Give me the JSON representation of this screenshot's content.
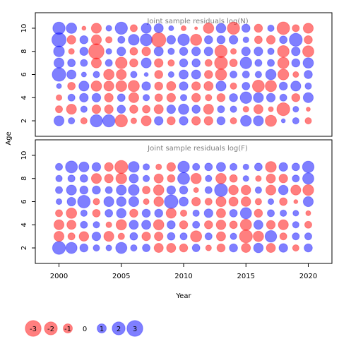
{
  "chart_data": [
    {
      "type": "bubble",
      "title": "Joint sample residuals log(N)",
      "x": [
        2000,
        2001,
        2002,
        2003,
        2004,
        2005,
        2006,
        2007,
        2008,
        2009,
        2010,
        2011,
        2012,
        2013,
        2014,
        2015,
        2016,
        2017,
        2018,
        2019,
        2020
      ],
      "y": [
        2,
        3,
        4,
        5,
        6,
        7,
        8,
        9,
        10
      ],
      "values": [
        [
          1.2,
          0.5,
          -0.5,
          1.8,
          1.8,
          -1.8,
          -0.4,
          -1.2,
          0.9,
          -0.8,
          0.9,
          -0.9,
          -0.9,
          0.8,
          -0.5,
          1.4,
          1.2,
          -1.5,
          0.2,
          0.5,
          -0.5
        ],
        [
          -0.6,
          -1.2,
          0.5,
          -0.9,
          -0.9,
          0.8,
          -0.8,
          -0.7,
          -1.0,
          0.9,
          1.3,
          0.8,
          -1.2,
          0.6,
          0.5,
          -0.4,
          -1.0,
          -0.3,
          -2.0,
          0.4,
          -0.2
        ],
        [
          -0.4,
          0.6,
          0.9,
          0.9,
          -0.9,
          0.7,
          -1.2,
          0.5,
          -0.7,
          -0.9,
          0.5,
          -0.9,
          -0.5,
          -0.8,
          0.8,
          1.6,
          1.2,
          0.9,
          0.6,
          -0.8,
          1.2
        ],
        [
          0.3,
          -0.7,
          1.2,
          -1.3,
          -1.2,
          -1.4,
          -1.5,
          0.9,
          -0.8,
          -1.0,
          0.9,
          -0.9,
          -1.0,
          1.2,
          -0.5,
          0.7,
          -1.7,
          -1.5,
          0.8,
          1.2,
          0.5
        ],
        [
          2.2,
          1.0,
          0.3,
          0.5,
          -1.3,
          -1.2,
          0.5,
          0.2,
          -0.8,
          0.4,
          1.0,
          1.0,
          -0.8,
          -1.5,
          0.6,
          0.6,
          0.5,
          1.3,
          -1.4,
          -0.4,
          0.8
        ],
        [
          1.2,
          0.7,
          0.6,
          -1.2,
          0.6,
          -1.6,
          -0.8,
          1.2,
          -0.9,
          -0.5,
          0.8,
          0.8,
          -0.6,
          -2.0,
          -0.7,
          1.6,
          0.6,
          0.6,
          -1.5,
          0.8,
          1.3
        ],
        [
          1.4,
          -0.4,
          0.8,
          -2.8,
          0.4,
          0.9,
          -0.7,
          -0.9,
          1.0,
          0.5,
          0.8,
          0.9,
          0.9,
          -1.8,
          -0.4,
          0.9,
          0.9,
          0.5,
          -1.6,
          0.9,
          -1.5
        ],
        [
          2.4,
          -0.9,
          0.8,
          -1.2,
          -0.5,
          0.6,
          1.4,
          1.7,
          -2.4,
          0.9,
          1.6,
          -1.5,
          0.8,
          0.8,
          0.9,
          0.4,
          -0.7,
          -0.9,
          0.7,
          2.0,
          -0.8
        ],
        [
          1.8,
          1.3,
          -0.2,
          -1.2,
          0.4,
          1.8,
          -0.6,
          1.2,
          1.0,
          0.3,
          -0.3,
          -0.1,
          -1.3,
          1.1,
          -1.8,
          0.8,
          -0.8,
          0.5,
          -1.9,
          -0.6,
          -1.2
        ]
      ],
      "xlim": [
        1998.1,
        2021.9
      ],
      "ylim": [
        0.66,
        11.34
      ],
      "yticks": [
        2,
        4,
        6,
        8,
        10
      ]
    },
    {
      "type": "bubble",
      "title": "Joint sample residuals log(F)",
      "x": [
        2000,
        2001,
        2002,
        2003,
        2004,
        2005,
        2006,
        2007,
        2008,
        2009,
        2010,
        2011,
        2012,
        2013,
        2014,
        2015,
        2016,
        2017,
        2018,
        2019,
        2020
      ],
      "y": [
        2,
        3,
        4,
        5,
        6,
        7,
        8,
        9
      ],
      "values": [
        [
          2.0,
          1.5,
          0.8,
          0.5,
          0.4,
          1.5,
          0.5,
          0.7,
          -1.0,
          -1.0,
          -0.8,
          0.7,
          -0.4,
          -0.8,
          0.8,
          -1.0,
          1.1,
          -1.0,
          0.9,
          -0.5,
          0.8
        ],
        [
          -1.2,
          -0.6,
          -1.1,
          0.9,
          -1.2,
          -0.5,
          0.7,
          -0.9,
          -0.9,
          0.7,
          0.6,
          -1.5,
          0.6,
          -1.0,
          0.5,
          -2.0,
          -1.3,
          1.6,
          -0.6,
          0.6,
          0.6
        ],
        [
          -1.2,
          -1.0,
          0.6,
          0.5,
          -0.4,
          -1.3,
          1.0,
          1.0,
          -1.3,
          0.8,
          -0.8,
          0.6,
          -0.8,
          -1.1,
          -0.7,
          -1.5,
          1.0,
          -0.9,
          -1.2,
          0.5,
          -0.6
        ],
        [
          -0.6,
          -1.3,
          0.5,
          -0.7,
          0.7,
          1.1,
          -0.8,
          0.8,
          0.8,
          -1.2,
          -0.5,
          0.5,
          0.9,
          -1.0,
          0.7,
          1.5,
          -0.8,
          0.6,
          0.5,
          0.4,
          -0.3
        ],
        [
          0.4,
          0.9,
          1.9,
          -0.5,
          1.2,
          1.1,
          1.2,
          -0.4,
          -1.1,
          2.2,
          1.0,
          -0.9,
          -0.6,
          -1.2,
          -1.0,
          -1.1,
          -0.5,
          0.4,
          -0.7,
          -0.2,
          1.2
        ],
        [
          0.6,
          1.2,
          0.8,
          0.8,
          0.6,
          1.2,
          1.4,
          -0.7,
          -1.3,
          0.9,
          0.8,
          -0.3,
          0.6,
          2.0,
          -1.1,
          -1.1,
          0.5,
          -1.2,
          1.1,
          -1.2,
          -1.4
        ],
        [
          0.5,
          0.6,
          0.7,
          -1.2,
          -0.9,
          -1.4,
          1.0,
          0.5,
          -1.0,
          -0.7,
          1.7,
          -1.3,
          0.5,
          -1.3,
          -0.7,
          0.4,
          -0.4,
          -1.0,
          -0.9,
          0.6,
          1.5
        ],
        [
          0.6,
          1.7,
          1.2,
          0.9,
          -0.9,
          -2.0,
          1.4,
          0.5,
          -0.4,
          -0.9,
          1.6,
          0.6,
          0.7,
          1.0,
          0.6,
          0.4,
          0.7,
          -1.4,
          0.9,
          0.7,
          1.6
        ]
      ],
      "xlim": [
        1998.1,
        2021.9
      ],
      "ylim": [
        0.66,
        11.34
      ],
      "yticks": [
        2,
        4,
        6,
        8,
        10
      ],
      "xticks": [
        2000,
        2005,
        2010,
        2015,
        2020
      ]
    }
  ],
  "xlabel": "Year",
  "ylabel": "Age",
  "positive_color": "#0000ff",
  "negative_color": "#ff0000",
  "legend": {
    "values": [
      -3,
      -2,
      -1,
      0,
      1,
      2,
      3
    ]
  }
}
